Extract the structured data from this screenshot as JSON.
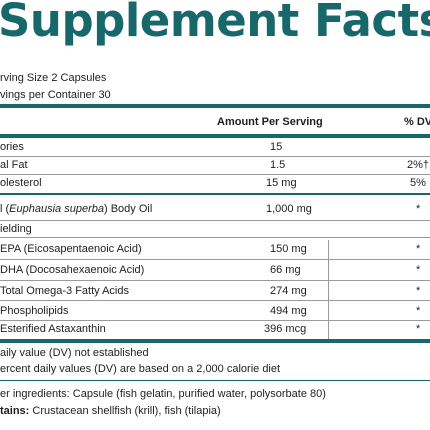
{
  "title": "Supplement Facts",
  "serving_size": "rving Size 2 Capsules",
  "servings_per_container": "vings per Container 30",
  "header": {
    "amount": "Amount Per Serving",
    "dv": "% DV"
  },
  "rows": [
    {
      "name": "ories",
      "amount": "15",
      "dv": ""
    },
    {
      "name": "al Fat",
      "amount": "1.5",
      "dv": "2%†"
    },
    {
      "name": "olesterol",
      "amount": "15 mg",
      "dv": "5%"
    },
    {
      "name_prefix": "l (",
      "name_italic": "Euphausia superba",
      "name_suffix": ") Body Oil",
      "amount": "1,000 mg",
      "dv": "*"
    },
    {
      "name": "ielding",
      "amount": "",
      "dv": ""
    },
    {
      "name": "EPA (Eicosapentaenoic Acid)",
      "amount": "150 mg",
      "dv": "*"
    },
    {
      "name": "DHA (Docosahexaenoic Acid)",
      "amount": "66 mg",
      "dv": "*"
    },
    {
      "name": "Total Omega-3 Fatty Acids",
      "amount": "274 mg",
      "dv": "*"
    },
    {
      "name": "Phospholipids",
      "amount": "494 mg",
      "dv": "*"
    },
    {
      "name": "Esterified Astaxanthin",
      "amount": "396 mcg",
      "dv": "*"
    }
  ],
  "footnote_1": "aily value (DV) not established",
  "footnote_2": "ercent daily values (DV) are based on a 2,000 calorie diet",
  "other_ingredients": "er ingredients: Capsule (fish gelatin, purified water, polysorbate 80)",
  "contains_label": "tains:",
  "contains_text": " Crustacean shellfish (krill), fish (tilapia)",
  "colors": {
    "accent": "#17676b"
  }
}
